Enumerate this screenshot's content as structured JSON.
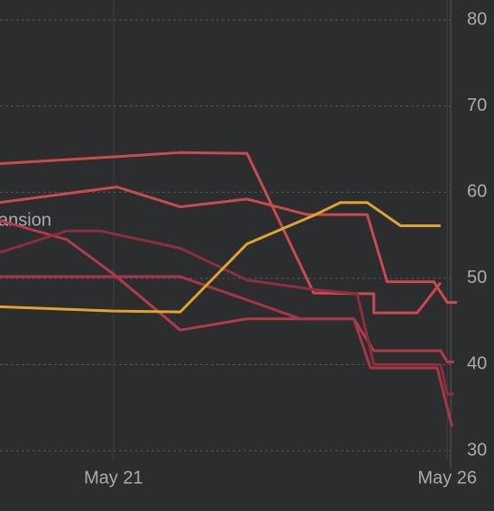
{
  "chart_data": {
    "type": "line",
    "annotation": "ansion",
    "xlim": [
      19.3,
      26.7
    ],
    "xticks": [
      {
        "value": 21,
        "label": "May 21"
      },
      {
        "value": 26,
        "label": "May 26"
      }
    ],
    "ylim": [
      23,
      82.3
    ],
    "yticks": [
      30,
      40,
      50,
      60,
      70,
      80
    ],
    "grid": true,
    "series": [
      {
        "color": "#c94b4b",
        "x": [
          19.3,
          21,
          22,
          23,
          24,
          24.9,
          24.9,
          25.55,
          25.9
        ],
        "values": [
          63.3,
          64.1,
          64.6,
          64.5,
          48.3,
          48.2,
          46,
          46,
          49.5
        ]
      },
      {
        "color": "#c94b4b",
        "x": [
          19.3,
          21.05,
          22,
          23,
          23.9,
          24.8,
          25.1,
          25.8,
          26,
          26.15
        ],
        "values": [
          58.8,
          60.6,
          58.3,
          59.2,
          57.4,
          57.4,
          49.6,
          49.6,
          47.2,
          47.2
        ]
      },
      {
        "color": "#b23b49",
        "x": [
          19.3,
          20.3,
          21,
          22,
          23,
          24,
          24.6,
          24.9,
          25.9,
          26,
          26.1
        ],
        "values": [
          56.7,
          54.5,
          50.5,
          44,
          45.3,
          45.3,
          45.3,
          41.6,
          41.6,
          40.3,
          40.3
        ]
      },
      {
        "color": "#8c2f3c",
        "x": [
          19.3,
          20.3,
          20.8,
          22,
          23,
          24,
          24.65,
          24.9,
          25.9,
          26,
          26.1
        ],
        "values": [
          53,
          55.5,
          55.5,
          53.5,
          49.8,
          48.7,
          48.2,
          40,
          40,
          36.6,
          36.6
        ]
      },
      {
        "color": "#a93646",
        "x": [
          19.3,
          21,
          22,
          23,
          23.8,
          24.6,
          24.85,
          25.85,
          26.07
        ],
        "values": [
          50.2,
          50.2,
          50.2,
          47.5,
          45.3,
          45.3,
          39.6,
          39.6,
          32.8
        ]
      },
      {
        "color": "#e0a231",
        "x": [
          19.3,
          21,
          22,
          23,
          24,
          24.4,
          24.8,
          25.3,
          25.9
        ],
        "values": [
          46.7,
          46.2,
          46.1,
          54,
          57.3,
          58.8,
          58.8,
          56.1,
          56.1
        ]
      }
    ]
  }
}
